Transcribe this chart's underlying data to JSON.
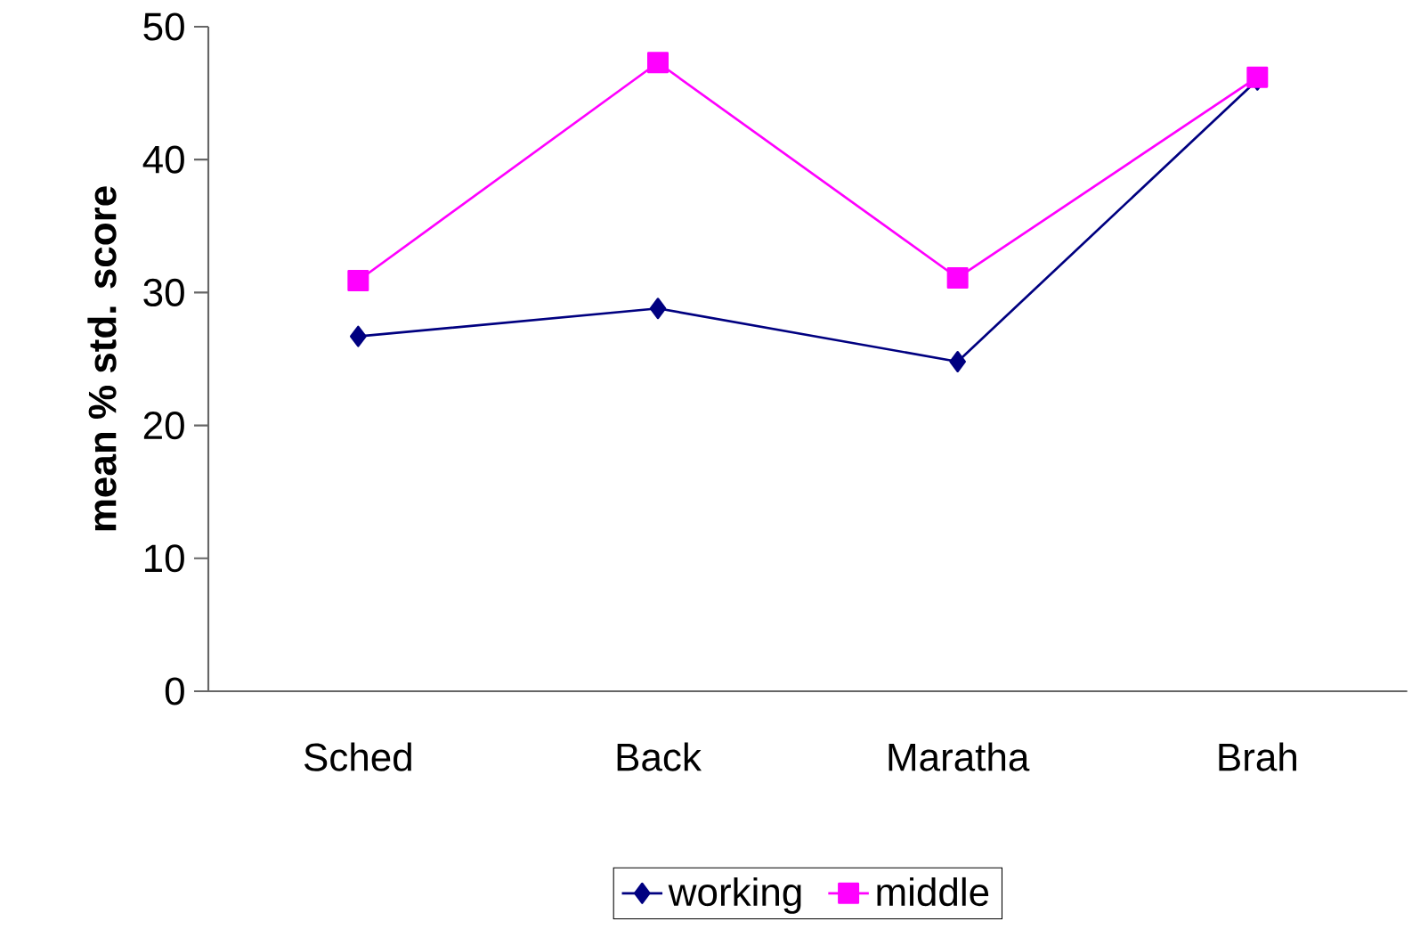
{
  "chart_data": {
    "type": "line",
    "ylabel": "mean % std. score",
    "categories": [
      "Sched",
      "Back",
      "Maratha",
      "Brah"
    ],
    "series": [
      {
        "name": "working",
        "color": "#000080",
        "marker": "diamond",
        "values": [
          26.7,
          28.8,
          24.8,
          46.0
        ]
      },
      {
        "name": "middle",
        "color": "#ff00ff",
        "marker": "square",
        "values": [
          30.9,
          47.3,
          31.1,
          46.2
        ]
      }
    ],
    "ylim": [
      0,
      50
    ],
    "yticks": [
      0,
      10,
      20,
      30,
      40,
      50
    ],
    "grid": false,
    "legend": "bottom",
    "line_style": "solid"
  }
}
